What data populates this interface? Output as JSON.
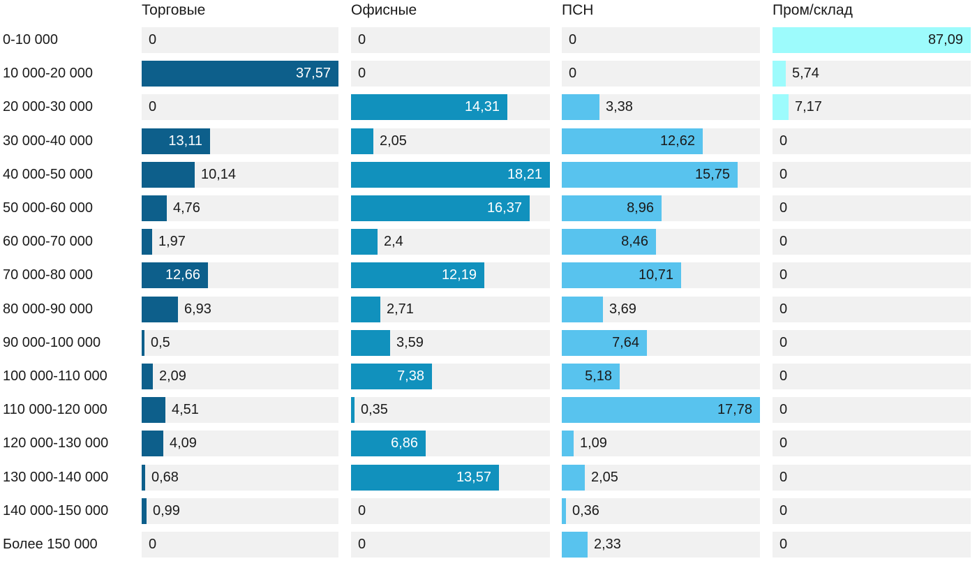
{
  "colors": {
    "background": "#ffffff",
    "track": "#f1f1f1",
    "text": "#1a1a1a",
    "inside_label_dark_bars": "#ffffff",
    "inside_label_light_bars": "#1a1a1a"
  },
  "chart_data": {
    "type": "bar",
    "orientation": "horizontal",
    "title": "",
    "xlabel": "",
    "ylabel": "",
    "legend_position": "column-headers-top",
    "grid": false,
    "value_decimal_separator": ",",
    "scaling": "each column scaled to its own max value = full track width",
    "categories": [
      "0-10 000",
      "10 000-20 000",
      "20 000-30 000",
      "30 000-40 000",
      "40 000-50 000",
      "50 000-60 000",
      "60 000-70 000",
      "70 000-80 000",
      "80 000-90 000",
      "90 000-100 000",
      "100 000-110 000",
      "110 000-120 000",
      "120 000-130 000",
      "130 000-140 000",
      "140 000-150 000",
      "Более 150 000"
    ],
    "series": [
      {
        "name": "Торговые",
        "color": "#0d5f8b",
        "inside_label_color": "#ffffff",
        "values": [
          0,
          37.57,
          0,
          13.11,
          10.14,
          4.76,
          1.97,
          12.66,
          6.93,
          0.5,
          2.09,
          4.51,
          4.09,
          0.68,
          0.99,
          0
        ]
      },
      {
        "name": "Офисные",
        "color": "#1191bd",
        "inside_label_color": "#ffffff",
        "values": [
          0,
          0,
          14.31,
          2.05,
          18.21,
          16.37,
          2.4,
          12.19,
          2.71,
          3.59,
          7.38,
          0.35,
          6.86,
          13.57,
          0,
          0
        ]
      },
      {
        "name": "ПСН",
        "color": "#58c3ee",
        "inside_label_color": "#1a1a1a",
        "values": [
          0,
          0,
          3.38,
          12.62,
          15.75,
          8.96,
          8.46,
          10.71,
          3.69,
          7.64,
          5.18,
          17.78,
          1.09,
          2.05,
          0.36,
          2.33
        ]
      },
      {
        "name": "Пром/склад",
        "color": "#9dfbfc",
        "inside_label_color": "#1a1a1a",
        "values": [
          87.09,
          5.74,
          7.17,
          0,
          0,
          0,
          0,
          0,
          0,
          0,
          0,
          0,
          0,
          0,
          0,
          0
        ]
      }
    ]
  }
}
